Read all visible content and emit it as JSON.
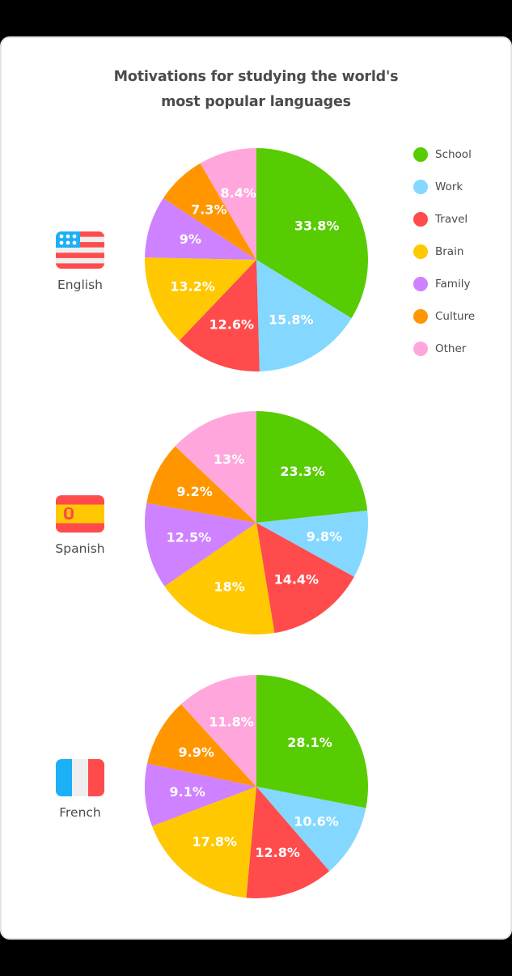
{
  "title": {
    "line1": "Motivations for studying the world's",
    "line2": "most popular languages"
  },
  "legend": [
    {
      "label": "School",
      "color": "#58cc02"
    },
    {
      "label": "Work",
      "color": "#84d8ff"
    },
    {
      "label": "Travel",
      "color": "#ff4b4b"
    },
    {
      "label": "Brain",
      "color": "#ffc800"
    },
    {
      "label": "Family",
      "color": "#ce82ff"
    },
    {
      "label": "Culture",
      "color": "#ff9600"
    },
    {
      "label": "Other",
      "color": "#ffa7dc"
    }
  ],
  "languages": [
    {
      "name": "English",
      "flag": "us-flag"
    },
    {
      "name": "Spanish",
      "flag": "spain-flag"
    },
    {
      "name": "French",
      "flag": "france-flag"
    }
  ],
  "chart_data": [
    {
      "type": "pie",
      "title": "English",
      "categories": [
        "School",
        "Work",
        "Travel",
        "Brain",
        "Family",
        "Culture",
        "Other"
      ],
      "values": [
        33.8,
        15.8,
        12.6,
        13.2,
        9,
        7.3,
        8.4
      ],
      "labels": [
        "33.8%",
        "15.8%",
        "12.6%",
        "13.2%",
        "9%",
        "7.3%",
        "8.4%"
      ],
      "colors": [
        "#58cc02",
        "#84d8ff",
        "#ff4b4b",
        "#ffc800",
        "#ce82ff",
        "#ff9600",
        "#ffa7dc"
      ],
      "start_angle": "12 o'clock",
      "direction": "clockwise",
      "legend_position": "right"
    },
    {
      "type": "pie",
      "title": "Spanish",
      "categories": [
        "School",
        "Work",
        "Travel",
        "Brain",
        "Family",
        "Culture",
        "Other"
      ],
      "values": [
        23.3,
        9.8,
        14.4,
        18,
        12.5,
        9.2,
        13
      ],
      "labels": [
        "23.3%",
        "9.8%",
        "14.4%",
        "18%",
        "12.5%",
        "9.2%",
        "13%"
      ],
      "colors": [
        "#58cc02",
        "#84d8ff",
        "#ff4b4b",
        "#ffc800",
        "#ce82ff",
        "#ff9600",
        "#ffa7dc"
      ],
      "start_angle": "12 o'clock",
      "direction": "clockwise",
      "legend_position": "right"
    },
    {
      "type": "pie",
      "title": "French",
      "categories": [
        "School",
        "Work",
        "Travel",
        "Brain",
        "Family",
        "Culture",
        "Other"
      ],
      "values": [
        28.1,
        10.6,
        12.8,
        17.8,
        9.1,
        9.9,
        11.8
      ],
      "labels": [
        "28.1%",
        "10.6%",
        "12.8%",
        "17.8%",
        "9.1%",
        "9.9%",
        "11.8%"
      ],
      "colors": [
        "#58cc02",
        "#84d8ff",
        "#ff4b4b",
        "#ffc800",
        "#ce82ff",
        "#ff9600",
        "#ffa7dc"
      ],
      "start_angle": "12 o'clock",
      "direction": "clockwise",
      "legend_position": "right"
    }
  ]
}
